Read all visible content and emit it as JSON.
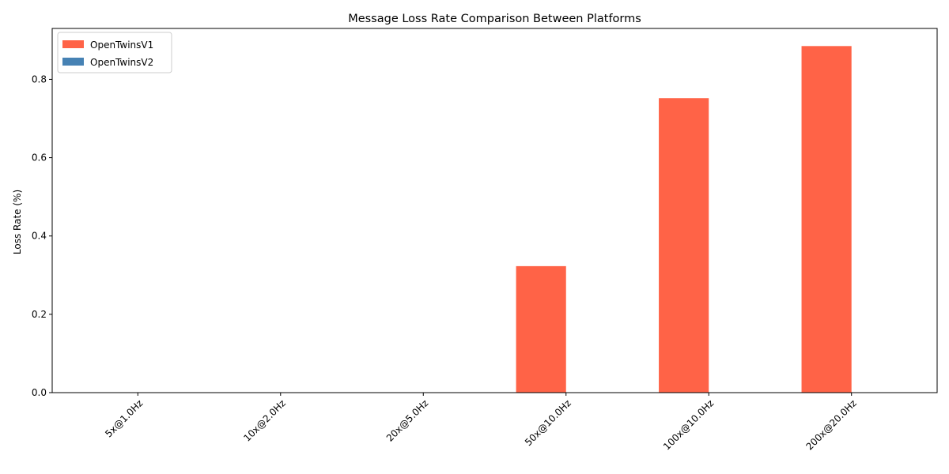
{
  "chart_data": {
    "type": "bar",
    "title": "Message Loss Rate Comparison Between Platforms",
    "xlabel": "",
    "ylabel": "Loss Rate (%)",
    "categories": [
      "5x@1.0Hz",
      "10x@2.0Hz",
      "20x@5.0Hz",
      "50x@10.0Hz",
      "100x@10.0Hz",
      "200x@20.0Hz"
    ],
    "series": [
      {
        "name": "OpenTwinsV1",
        "color": "#ff6347",
        "values": [
          0,
          0,
          0,
          0.323,
          0.752,
          0.885
        ]
      },
      {
        "name": "OpenTwinsV2",
        "color": "#4682b4",
        "values": [
          0,
          0,
          0,
          0,
          0,
          0
        ]
      }
    ],
    "ylim": [
      0,
      0.93
    ],
    "yticks": [
      0.0,
      0.2,
      0.4,
      0.6,
      0.8
    ],
    "ytick_labels": [
      "0.0",
      "0.2",
      "0.4",
      "0.6",
      "0.8"
    ],
    "grid": false,
    "legend_position": "top-left"
  }
}
